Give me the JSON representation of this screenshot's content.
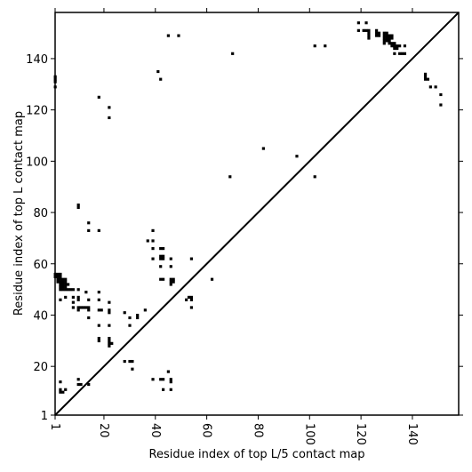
{
  "chart_data": {
    "type": "scatter",
    "marker": "square",
    "xlabel": "Residue index of top L/5 contact map",
    "ylabel": "Residue index of top L contact map",
    "xlim": [
      1,
      158
    ],
    "ylim": [
      1,
      158
    ],
    "xticks": [
      1,
      20,
      40,
      60,
      80,
      100,
      120,
      140
    ],
    "yticks": [
      1,
      20,
      40,
      60,
      80,
      100,
      120,
      140
    ],
    "grid": false,
    "diagonal": true,
    "points": [
      [
        1,
        56
      ],
      [
        2,
        56
      ],
      [
        3,
        56
      ],
      [
        1,
        55
      ],
      [
        2,
        55
      ],
      [
        3,
        55
      ],
      [
        2,
        54
      ],
      [
        3,
        54
      ],
      [
        4,
        54
      ],
      [
        5,
        54
      ],
      [
        2,
        53
      ],
      [
        3,
        53
      ],
      [
        4,
        53
      ],
      [
        5,
        53
      ],
      [
        3,
        52
      ],
      [
        4,
        52
      ],
      [
        5,
        52
      ],
      [
        6,
        52
      ],
      [
        3,
        51
      ],
      [
        4,
        51
      ],
      [
        5,
        51
      ],
      [
        3,
        50
      ],
      [
        4,
        50
      ],
      [
        5,
        50
      ],
      [
        6,
        50
      ],
      [
        7,
        50
      ],
      [
        8,
        50
      ],
      [
        3,
        46
      ],
      [
        5,
        47
      ],
      [
        8,
        47
      ],
      [
        8,
        45
      ],
      [
        8,
        43
      ],
      [
        10,
        50
      ],
      [
        10,
        47
      ],
      [
        10,
        46
      ],
      [
        10,
        43
      ],
      [
        11,
        43
      ],
      [
        10,
        42
      ],
      [
        12,
        43
      ],
      [
        13,
        49
      ],
      [
        14,
        46
      ],
      [
        13,
        43
      ],
      [
        14,
        43
      ],
      [
        14,
        42
      ],
      [
        14,
        39
      ],
      [
        18,
        49
      ],
      [
        18,
        46
      ],
      [
        18,
        42
      ],
      [
        19,
        42
      ],
      [
        18,
        36
      ],
      [
        18,
        31
      ],
      [
        18,
        30
      ],
      [
        22,
        31
      ],
      [
        22,
        45
      ],
      [
        22,
        42
      ],
      [
        22,
        41
      ],
      [
        22,
        36
      ],
      [
        22,
        30
      ],
      [
        22,
        29
      ],
      [
        22,
        28
      ],
      [
        23,
        29
      ],
      [
        28,
        41
      ],
      [
        30,
        39
      ],
      [
        30,
        36
      ],
      [
        33,
        40
      ],
      [
        33,
        39
      ],
      [
        36,
        42
      ],
      [
        3,
        14
      ],
      [
        3,
        11
      ],
      [
        3,
        10
      ],
      [
        4,
        10
      ],
      [
        5,
        11
      ],
      [
        10,
        15
      ],
      [
        10,
        13
      ],
      [
        11,
        13
      ],
      [
        14,
        13
      ],
      [
        28,
        22
      ],
      [
        30,
        22
      ],
      [
        31,
        22
      ],
      [
        31,
        19
      ],
      [
        39,
        15
      ],
      [
        42,
        15
      ],
      [
        43,
        15
      ],
      [
        43,
        11
      ],
      [
        45,
        18
      ],
      [
        46,
        15
      ],
      [
        46,
        14
      ],
      [
        46,
        11
      ],
      [
        1,
        133
      ],
      [
        1,
        132
      ],
      [
        1,
        131
      ],
      [
        1,
        129
      ],
      [
        10,
        83
      ],
      [
        10,
        82
      ],
      [
        14,
        76
      ],
      [
        14,
        73
      ],
      [
        18,
        73
      ],
      [
        18,
        125
      ],
      [
        22,
        121
      ],
      [
        22,
        117
      ],
      [
        37,
        69
      ],
      [
        39,
        73
      ],
      [
        39,
        69
      ],
      [
        39,
        66
      ],
      [
        39,
        62
      ],
      [
        41,
        135
      ],
      [
        42,
        132
      ],
      [
        42,
        66
      ],
      [
        43,
        66
      ],
      [
        42,
        63
      ],
      [
        43,
        63
      ],
      [
        42,
        62
      ],
      [
        43,
        62
      ],
      [
        42,
        59
      ],
      [
        46,
        59
      ],
      [
        46,
        62
      ],
      [
        42,
        54
      ],
      [
        43,
        54
      ],
      [
        46,
        54
      ],
      [
        47,
        54
      ],
      [
        46,
        53
      ],
      [
        47,
        53
      ],
      [
        46,
        52
      ],
      [
        45,
        149
      ],
      [
        49,
        149
      ],
      [
        54,
        62
      ],
      [
        52,
        46
      ],
      [
        53,
        47
      ],
      [
        54,
        47
      ],
      [
        54,
        46
      ],
      [
        54,
        43
      ],
      [
        62,
        54
      ],
      [
        70,
        142
      ],
      [
        69,
        94
      ],
      [
        82,
        105
      ],
      [
        95,
        102
      ],
      [
        102,
        145
      ],
      [
        106,
        145
      ],
      [
        102,
        94
      ],
      [
        119,
        154
      ],
      [
        119,
        151
      ],
      [
        122,
        154
      ],
      [
        121,
        151
      ],
      [
        122,
        151
      ],
      [
        123,
        151
      ],
      [
        123,
        150
      ],
      [
        123,
        149
      ],
      [
        123,
        148
      ],
      [
        126,
        151
      ],
      [
        126,
        150
      ],
      [
        127,
        150
      ],
      [
        126,
        149
      ],
      [
        127,
        149
      ],
      [
        129,
        150
      ],
      [
        130,
        150
      ],
      [
        129,
        149
      ],
      [
        130,
        149
      ],
      [
        131,
        149
      ],
      [
        132,
        149
      ],
      [
        129,
        148
      ],
      [
        130,
        148
      ],
      [
        131,
        148
      ],
      [
        132,
        148
      ],
      [
        129,
        147
      ],
      [
        130,
        147
      ],
      [
        131,
        147
      ],
      [
        129,
        146
      ],
      [
        131,
        146
      ],
      [
        132,
        146
      ],
      [
        133,
        146
      ],
      [
        132,
        145
      ],
      [
        133,
        145
      ],
      [
        134,
        145
      ],
      [
        135,
        145
      ],
      [
        137,
        145
      ],
      [
        133,
        144
      ],
      [
        134,
        144
      ],
      [
        133,
        142
      ],
      [
        135,
        142
      ],
      [
        136,
        142
      ],
      [
        137,
        142
      ],
      [
        145,
        134
      ],
      [
        145,
        133
      ],
      [
        145,
        132
      ],
      [
        146,
        132
      ],
      [
        147,
        129
      ],
      [
        149,
        129
      ],
      [
        151,
        126
      ],
      [
        151,
        122
      ]
    ]
  }
}
